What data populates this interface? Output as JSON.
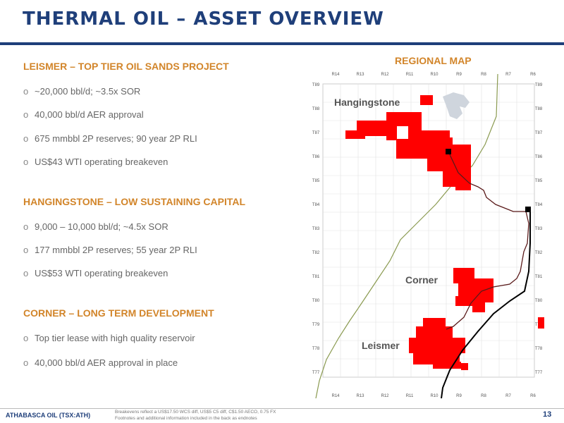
{
  "title": "THERMAL OIL – ASSET OVERVIEW",
  "sections": [
    {
      "heading": "LEISMER – TOP TIER OIL SANDS PROJECT",
      "bullets": [
        "~20,000 bbl/d; ~3.5x SOR",
        "40,000 bbl/d AER approval",
        "675 mmbbl 2P reserves; 90 year 2P RLI",
        "US$43 WTI operating breakeven"
      ]
    },
    {
      "heading": "HANGINGSTONE – LOW SUSTAINING CAPITAL",
      "bullets": [
        "9,000 – 10,000 bbl/d; ~4.5x SOR",
        "177 mmbbl 2P reserves; 55 year 2P RLI",
        "US$53 WTI operating breakeven"
      ]
    },
    {
      "heading": "CORNER – LONG TERM DEVELOPMENT",
      "bullets": [
        "Top tier lease with high quality reservoir",
        "40,000 bbl/d AER approval in place"
      ]
    }
  ],
  "bullet_marker": "o",
  "map": {
    "title": "REGIONAL MAP",
    "labels": {
      "hangingstone": "Hangingstone",
      "corner": "Corner",
      "leismer": "Leismer"
    },
    "range_labels": [
      "R14",
      "R13",
      "R12",
      "R11",
      "R10",
      "R9",
      "R8",
      "R7",
      "R6"
    ],
    "township_labels": [
      "T89",
      "T88",
      "T87",
      "T86",
      "T85",
      "T84",
      "T83",
      "T82",
      "T81",
      "T80",
      "T79",
      "T78",
      "T77"
    ],
    "colors": {
      "lease": "#ff0000",
      "pipeline": "#5a1a1a",
      "highway": "#000000",
      "boundary": "#8a9a50",
      "grid": "#dddddd",
      "water": "#cfd5dd"
    }
  },
  "footer": {
    "brand": "ATHABASCA OIL (TSX:ATH)",
    "note_line1": "Breakevens reflect a US$17.50 WCS diff, US$5 C5 diff, C$1.50 AECO, 0.75 FX",
    "note_line2": "Footnotes and additional information included in the back as endnotes",
    "page": "13"
  },
  "colors": {
    "title": "#1f3f7a",
    "accent": "#d2852a",
    "body_text": "#666666"
  }
}
